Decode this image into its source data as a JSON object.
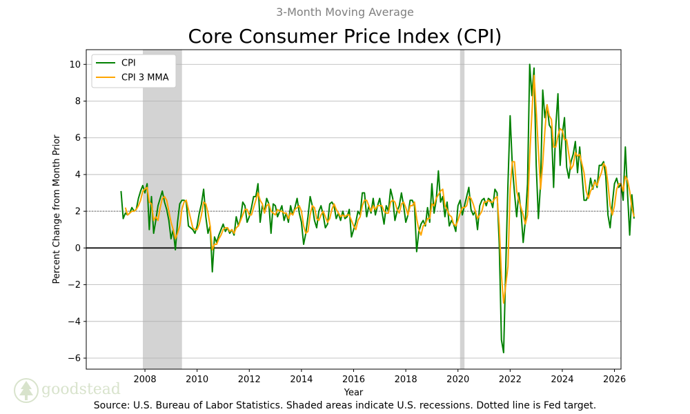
{
  "chart_data": {
    "type": "line",
    "subtitle": "3-Month Moving Average",
    "title": "Core Consumer Price Index (CPI)",
    "xlabel": "Year",
    "ylabel": "Percent Change from Month Prior",
    "xlim": [
      2005.75,
      2026.25
    ],
    "ylim": [
      -6.6,
      10.8
    ],
    "xticks": [
      2008,
      2010,
      2012,
      2014,
      2016,
      2018,
      2020,
      2022,
      2024,
      2026
    ],
    "yticks": [
      -6,
      -4,
      -2,
      0,
      2,
      4,
      6,
      8,
      10
    ],
    "grid": "horizontal",
    "legend_position": "top-left",
    "reference_lines": {
      "fed_target": 2.0,
      "zero": 0
    },
    "recessions": [
      [
        2007.92,
        2009.42
      ],
      [
        2020.08,
        2020.25
      ]
    ],
    "x_start": 2007.0833,
    "x_step": 0.083333,
    "series": [
      {
        "name": "CPI",
        "color": "#008000",
        "values": [
          3.1,
          1.6,
          1.9,
          1.8,
          1.9,
          2.2,
          2.0,
          2.1,
          2.7,
          3.1,
          3.4,
          3.0,
          3.5,
          1.0,
          2.8,
          0.8,
          1.5,
          2.3,
          2.7,
          3.1,
          2.5,
          2.1,
          1.5,
          0.5,
          1.0,
          -0.1,
          1.4,
          2.4,
          2.6,
          2.6,
          2.5,
          1.2,
          1.1,
          1.0,
          0.8,
          1.2,
          1.9,
          2.4,
          3.2,
          1.7,
          0.8,
          1.2,
          -1.3,
          0.6,
          0.3,
          0.7,
          1.0,
          1.3,
          0.9,
          1.1,
          0.8,
          1.0,
          0.7,
          1.7,
          1.2,
          1.6,
          2.5,
          2.3,
          1.4,
          1.7,
          2.2,
          2.8,
          2.8,
          3.5,
          1.4,
          2.3,
          2.0,
          2.7,
          2.4,
          0.8,
          2.4,
          2.3,
          1.7,
          2.0,
          2.3,
          1.5,
          1.9,
          1.4,
          2.3,
          1.8,
          2.2,
          2.7,
          1.9,
          1.4,
          0.2,
          0.8,
          1.7,
          2.8,
          2.3,
          1.5,
          1.1,
          2.0,
          2.3,
          1.8,
          1.1,
          1.3,
          2.4,
          2.5,
          2.3,
          1.6,
          1.9,
          1.5,
          2.0,
          1.6,
          1.7,
          2.1,
          0.6,
          1.0,
          1.4,
          2.0,
          1.8,
          3.0,
          3.0,
          1.7,
          2.3,
          1.9,
          2.7,
          1.8,
          2.3,
          2.7,
          2.0,
          1.3,
          2.3,
          2.0,
          3.2,
          2.7,
          1.5,
          2.0,
          2.3,
          3.0,
          2.3,
          1.4,
          1.8,
          2.6,
          2.6,
          2.3,
          -0.2,
          0.9,
          1.3,
          1.5,
          1.2,
          2.2,
          1.4,
          3.5,
          1.9,
          2.6,
          4.2,
          2.5,
          2.8,
          1.7,
          2.5,
          1.2,
          1.5,
          1.3,
          0.9,
          2.3,
          2.6,
          1.8,
          2.3,
          2.8,
          3.3,
          2.1,
          1.8,
          2.0,
          1.0,
          2.3,
          2.6,
          2.7,
          2.3,
          2.7,
          2.6,
          2.2,
          3.2,
          3.0,
          0.2,
          -5.0,
          -5.7,
          -1.0,
          3.5,
          7.2,
          4.5,
          3.0,
          1.7,
          3.0,
          2.0,
          0.3,
          1.5,
          3.5,
          10.0,
          8.3,
          9.8,
          4.5,
          1.6,
          3.5,
          8.6,
          7.1,
          7.8,
          6.7,
          6.5,
          3.3,
          6.6,
          8.4,
          4.5,
          6.2,
          7.1,
          4.4,
          3.8,
          4.7,
          5.1,
          5.8,
          4.1,
          5.5,
          4.1,
          2.6,
          2.6,
          2.9,
          3.8,
          3.2,
          3.7,
          3.3,
          4.5,
          4.5,
          4.7,
          3.9,
          1.8,
          1.1,
          2.4,
          3.5,
          3.8,
          3.3,
          3.5,
          2.6,
          5.5,
          3.0,
          0.7,
          2.9,
          1.6
        ]
      },
      {
        "name": "CPI 3 MMA",
        "color": "#FFA500",
        "values": [
          null,
          null,
          2.2,
          1.8,
          1.9,
          2.0,
          2.0,
          2.1,
          2.3,
          2.6,
          3.1,
          3.2,
          3.3,
          2.5,
          2.4,
          1.5,
          1.7,
          1.5,
          2.2,
          2.7,
          2.8,
          2.6,
          2.0,
          1.4,
          1.0,
          0.5,
          0.8,
          1.2,
          2.1,
          2.5,
          2.6,
          2.1,
          1.6,
          1.1,
          1.0,
          1.0,
          1.3,
          1.8,
          2.5,
          2.4,
          1.9,
          1.2,
          -0.1,
          0.2,
          0.2,
          0.5,
          0.7,
          1.0,
          1.1,
          1.1,
          0.9,
          1.0,
          0.8,
          1.1,
          1.2,
          1.5,
          1.8,
          2.1,
          2.1,
          1.8,
          1.8,
          2.2,
          2.6,
          3.0,
          2.6,
          2.4,
          1.9,
          2.3,
          2.4,
          2.0,
          1.9,
          1.8,
          2.1,
          2.0,
          2.0,
          1.9,
          1.9,
          1.6,
          1.9,
          1.8,
          2.1,
          2.2,
          2.3,
          2.0,
          1.2,
          0.8,
          0.9,
          1.8,
          2.3,
          2.2,
          1.6,
          1.5,
          1.8,
          2.0,
          1.7,
          1.4,
          1.6,
          2.1,
          2.4,
          2.1,
          1.9,
          1.7,
          1.8,
          1.7,
          1.8,
          1.8,
          1.5,
          1.2,
          1.0,
          1.5,
          1.7,
          2.3,
          2.6,
          2.6,
          2.3,
          2.0,
          2.3,
          2.1,
          2.3,
          2.3,
          2.3,
          2.0,
          1.9,
          1.9,
          2.5,
          2.6,
          2.5,
          2.1,
          1.9,
          2.4,
          2.5,
          2.2,
          1.8,
          2.3,
          2.3,
          2.5,
          1.6,
          1.0,
          0.7,
          1.2,
          1.3,
          1.6,
          1.6,
          2.4,
          2.3,
          2.7,
          2.9,
          3.1,
          3.2,
          2.3,
          2.1,
          1.8,
          1.7,
          1.3,
          1.2,
          1.5,
          1.9,
          2.2,
          2.2,
          2.3,
          2.8,
          2.7,
          2.4,
          2.0,
          1.6,
          1.8,
          2.0,
          2.5,
          2.5,
          2.6,
          2.5,
          2.5,
          2.7,
          2.8,
          1.2,
          -1.5,
          -3.0,
          -2.0,
          -1.0,
          3.2,
          4.7,
          4.7,
          3.1,
          2.6,
          2.2,
          1.8,
          1.3,
          1.8,
          5.0,
          7.3,
          9.4,
          7.5,
          5.3,
          3.2,
          4.6,
          6.4,
          7.8,
          7.2,
          7.0,
          5.5,
          5.5,
          6.1,
          6.5,
          6.4,
          5.9,
          5.9,
          5.1,
          4.3,
          4.5,
          5.2,
          5.0,
          5.1,
          4.6,
          4.1,
          3.1,
          2.7,
          3.1,
          3.3,
          3.6,
          3.4,
          3.8,
          4.1,
          4.6,
          4.4,
          3.5,
          2.3,
          1.8,
          2.3,
          3.2,
          3.5,
          3.5,
          3.1,
          3.9,
          3.7,
          3.1,
          2.2,
          1.7
        ]
      }
    ]
  },
  "source_note": "Source: U.S. Bureau of Labor Statistics. Shaded areas indicate U.S. recessions. Dotted line is Fed target.",
  "brand": {
    "name": "goodstead",
    "icon": "tree-icon"
  }
}
